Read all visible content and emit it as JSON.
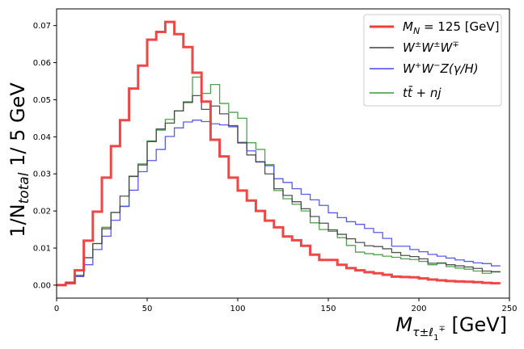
{
  "chart_data": {
    "type": "line",
    "style": "histogram-step",
    "xlabel": "M_{τ±ℓ1∓} [GeV]",
    "ylabel": "1/N_{total} 1/ 5 GeV",
    "xlim": [
      0,
      250
    ],
    "ylim": [
      -0.0035,
      0.0745
    ],
    "grid": false,
    "legend_position": "top-right",
    "x_ticks": [
      "0",
      "50",
      "100",
      "150",
      "200",
      "250"
    ],
    "y_ticks": [
      "0.00",
      "0.01",
      "0.02",
      "0.03",
      "0.04",
      "0.05",
      "0.06",
      "0.07"
    ],
    "bin_edges": [
      0,
      5,
      10,
      15,
      20,
      25,
      30,
      35,
      40,
      45,
      50,
      55,
      60,
      65,
      70,
      75,
      80,
      85,
      90,
      95,
      100,
      105,
      110,
      115,
      120,
      125,
      130,
      135,
      140,
      145,
      150,
      155,
      160,
      165,
      170,
      175,
      180,
      185,
      190,
      195,
      200,
      205,
      210,
      215,
      220,
      225,
      230,
      235,
      240,
      245
    ],
    "series": [
      {
        "name": "M_N = 125 [GeV]",
        "color": "#f03c3c",
        "values": [
          0.0,
          0.0005,
          0.004,
          0.012,
          0.0198,
          0.029,
          0.0375,
          0.0445,
          0.053,
          0.0592,
          0.0662,
          0.0683,
          0.071,
          0.0677,
          0.0642,
          0.0573,
          0.0495,
          0.0392,
          0.0347,
          0.029,
          0.0255,
          0.0228,
          0.02,
          0.0174,
          0.0156,
          0.0131,
          0.0121,
          0.0106,
          0.0082,
          0.0068,
          0.0068,
          0.0055,
          0.0046,
          0.004,
          0.0035,
          0.0032,
          0.0028,
          0.0023,
          0.0022,
          0.0021,
          0.0018,
          0.0015,
          0.0013,
          0.0011,
          0.001,
          0.0009,
          0.0008,
          0.0006,
          0.0005
        ]
      },
      {
        "name": "W±W±W∓",
        "color": "#404040",
        "values": [
          0.0,
          0.0008,
          0.0026,
          0.0074,
          0.0112,
          0.0152,
          0.0196,
          0.024,
          0.0293,
          0.0324,
          0.0387,
          0.0421,
          0.0437,
          0.047,
          0.0494,
          0.0511,
          0.0474,
          0.0483,
          0.0462,
          0.043,
          0.0385,
          0.0351,
          0.0333,
          0.03,
          0.026,
          0.0242,
          0.0225,
          0.0206,
          0.0185,
          0.0167,
          0.0149,
          0.0137,
          0.0125,
          0.0115,
          0.0106,
          0.0104,
          0.0098,
          0.0088,
          0.008,
          0.0077,
          0.0071,
          0.0059,
          0.0059,
          0.0055,
          0.0052,
          0.0049,
          0.0045,
          0.0038,
          0.0036
        ]
      },
      {
        "name": "W⁺W⁻Z(γ/H)",
        "color": "#4848f0",
        "values": [
          0.0,
          0.0006,
          0.0023,
          0.0055,
          0.0096,
          0.0132,
          0.0175,
          0.0212,
          0.0256,
          0.0306,
          0.0336,
          0.0366,
          0.0401,
          0.0424,
          0.044,
          0.0445,
          0.0441,
          0.0435,
          0.0432,
          0.0427,
          0.0383,
          0.0362,
          0.0332,
          0.0322,
          0.0287,
          0.0277,
          0.026,
          0.0245,
          0.023,
          0.0215,
          0.0195,
          0.0182,
          0.0171,
          0.0164,
          0.0153,
          0.0142,
          0.0126,
          0.0105,
          0.0105,
          0.0096,
          0.009,
          0.0083,
          0.0078,
          0.0073,
          0.0068,
          0.0064,
          0.006,
          0.0058,
          0.0052
        ]
      },
      {
        "name": "tt̄ + nj",
        "color": "#3a9a3a",
        "values": [
          0.0,
          0.0008,
          0.0026,
          0.0074,
          0.0112,
          0.0156,
          0.0196,
          0.0213,
          0.0294,
          0.0327,
          0.0389,
          0.0418,
          0.0447,
          0.047,
          0.0492,
          0.0561,
          0.0517,
          0.0541,
          0.049,
          0.0466,
          0.045,
          0.0384,
          0.0366,
          0.0325,
          0.0255,
          0.0233,
          0.0218,
          0.02,
          0.0168,
          0.015,
          0.0145,
          0.0128,
          0.0107,
          0.0089,
          0.0085,
          0.0082,
          0.0078,
          0.0075,
          0.0071,
          0.0069,
          0.0064,
          0.0055,
          0.006,
          0.005,
          0.0046,
          0.0043,
          0.0038,
          0.0032,
          0.0036
        ]
      }
    ]
  }
}
